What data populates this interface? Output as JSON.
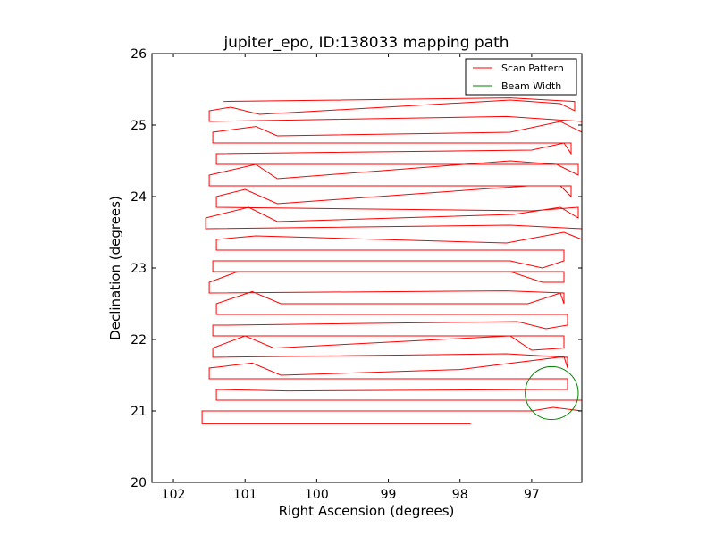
{
  "chart_data": {
    "type": "line",
    "title": "jupiter_epo, ID:138033 mapping path",
    "xlabel": "Right Ascension (degrees)",
    "ylabel": "Declination (degrees)",
    "xlim": [
      102.3,
      96.3
    ],
    "ylim": [
      20,
      26
    ],
    "xticks": [
      102,
      101,
      100,
      99,
      98,
      97
    ],
    "yticks": [
      20,
      21,
      22,
      23,
      24,
      25,
      26
    ],
    "xtick_labels": [
      "102",
      "101",
      "100",
      "99",
      "98",
      "97"
    ],
    "ytick_labels": [
      "20",
      "21",
      "22",
      "23",
      "24",
      "25",
      "26"
    ],
    "legend_position": "top-right",
    "grid": false,
    "series": [
      {
        "name": "Scan Pattern",
        "color": "#ff0000",
        "rows": [
          {
            "y": 20.82,
            "x_start": 97.85,
            "x_end": 101.6,
            "bumps": []
          },
          {
            "y": 21.0,
            "x_start": 101.6,
            "x_end": 96.3,
            "bumps": [
              [
                97.0,
                21.0
              ],
              [
                96.7,
                21.05
              ]
            ]
          },
          {
            "y": 21.15,
            "x_start": 96.3,
            "x_end": 101.4,
            "bumps": []
          },
          {
            "y": 21.3,
            "x_start": 101.4,
            "x_end": 96.5,
            "bumps": [
              [
                100.4,
                21.28
              ],
              [
                96.8,
                21.3
              ]
            ]
          },
          {
            "y": 21.45,
            "x_start": 96.5,
            "x_end": 101.5,
            "bumps": [
              [
                97.0,
                21.45
              ]
            ]
          },
          {
            "y": 21.6,
            "x_start": 101.5,
            "x_end": 96.5,
            "bumps": [
              [
                100.9,
                21.67
              ],
              [
                100.5,
                21.5
              ],
              [
                98.0,
                21.58
              ],
              [
                96.55,
                21.76
              ]
            ]
          },
          {
            "y": 21.75,
            "x_start": 96.5,
            "x_end": 101.45,
            "bumps": [
              [
                97.35,
                21.8
              ]
            ]
          },
          {
            "y": 21.88,
            "x_start": 101.45,
            "x_end": 96.55,
            "bumps": [
              [
                101.0,
                22.05
              ],
              [
                100.6,
                21.88
              ],
              [
                97.3,
                22.05
              ],
              [
                97.0,
                21.85
              ]
            ]
          },
          {
            "y": 22.05,
            "x_start": 96.55,
            "x_end": 101.45,
            "bumps": [
              [
                97.3,
                22.05
              ]
            ]
          },
          {
            "y": 22.2,
            "x_start": 101.45,
            "x_end": 96.5,
            "bumps": [
              [
                101.3,
                22.2
              ],
              [
                97.2,
                22.25
              ],
              [
                96.8,
                22.15
              ]
            ]
          },
          {
            "y": 22.35,
            "x_start": 96.5,
            "x_end": 101.4,
            "bumps": [
              [
                97.3,
                22.35
              ]
            ]
          },
          {
            "y": 22.5,
            "x_start": 101.4,
            "x_end": 96.55,
            "bumps": [
              [
                100.9,
                22.67
              ],
              [
                100.5,
                22.5
              ],
              [
                97.05,
                22.5
              ],
              [
                96.6,
                22.65
              ]
            ]
          },
          {
            "y": 22.65,
            "x_start": 96.55,
            "x_end": 101.5,
            "bumps": [
              [
                97.35,
                22.68
              ]
            ]
          },
          {
            "y": 22.8,
            "x_start": 101.5,
            "x_end": 96.55,
            "bumps": [
              [
                101.1,
                22.95
              ],
              [
                97.3,
                22.95
              ],
              [
                96.85,
                22.8
              ]
            ]
          },
          {
            "y": 22.95,
            "x_start": 96.55,
            "x_end": 101.45,
            "bumps": [
              [
                97.3,
                22.95
              ]
            ]
          },
          {
            "y": 23.1,
            "x_start": 101.45,
            "x_end": 96.55,
            "bumps": [
              [
                100.2,
                23.1
              ],
              [
                97.3,
                23.1
              ],
              [
                96.85,
                23.0
              ]
            ]
          },
          {
            "y": 23.25,
            "x_start": 96.55,
            "x_end": 101.4,
            "bumps": []
          },
          {
            "y": 23.4,
            "x_start": 101.4,
            "x_end": 96.3,
            "bumps": [
              [
                100.85,
                23.45
              ],
              [
                97.35,
                23.35
              ],
              [
                96.55,
                23.5
              ]
            ]
          },
          {
            "y": 23.55,
            "x_start": 96.3,
            "x_end": 101.55,
            "bumps": [
              [
                97.3,
                23.6
              ]
            ]
          },
          {
            "y": 23.7,
            "x_start": 101.55,
            "x_end": 96.35,
            "bumps": [
              [
                100.95,
                23.85
              ],
              [
                100.55,
                23.65
              ],
              [
                97.25,
                23.75
              ],
              [
                96.6,
                23.85
              ]
            ]
          },
          {
            "y": 23.85,
            "x_start": 96.35,
            "x_end": 101.4,
            "bumps": [
              [
                97.0,
                23.8
              ]
            ]
          },
          {
            "y": 24.0,
            "x_start": 101.4,
            "x_end": 96.45,
            "bumps": [
              [
                101.0,
                24.1
              ],
              [
                100.55,
                23.9
              ],
              [
                97.05,
                24.15
              ],
              [
                96.6,
                24.15
              ]
            ]
          },
          {
            "y": 24.15,
            "x_start": 96.45,
            "x_end": 101.5,
            "bumps": [
              [
                97.05,
                24.15
              ]
            ]
          },
          {
            "y": 24.3,
            "x_start": 101.5,
            "x_end": 96.35,
            "bumps": [
              [
                100.85,
                24.45
              ],
              [
                100.55,
                24.25
              ],
              [
                97.3,
                24.5
              ],
              [
                96.65,
                24.45
              ]
            ]
          },
          {
            "y": 24.45,
            "x_start": 96.35,
            "x_end": 101.4,
            "bumps": []
          },
          {
            "y": 24.6,
            "x_start": 101.4,
            "x_end": 96.45,
            "bumps": [
              [
                97.0,
                24.65
              ],
              [
                96.55,
                24.75
              ]
            ]
          },
          {
            "y": 24.75,
            "x_start": 96.45,
            "x_end": 101.45,
            "bumps": [
              [
                97.3,
                24.75
              ]
            ]
          },
          {
            "y": 24.9,
            "x_start": 101.45,
            "x_end": 96.3,
            "bumps": [
              [
                100.85,
                24.98
              ],
              [
                100.55,
                24.85
              ],
              [
                97.3,
                24.9
              ],
              [
                96.6,
                25.05
              ]
            ]
          },
          {
            "y": 25.05,
            "x_start": 96.3,
            "x_end": 101.5,
            "bumps": [
              [
                97.35,
                25.12
              ]
            ]
          },
          {
            "y": 25.2,
            "x_start": 101.5,
            "x_end": 96.4,
            "bumps": [
              [
                101.2,
                25.25
              ],
              [
                100.8,
                25.15
              ],
              [
                97.3,
                25.35
              ],
              [
                96.6,
                25.3
              ]
            ]
          },
          {
            "y": 25.33,
            "x_start": 96.4,
            "x_end": 101.3,
            "bumps": [
              [
                97.3,
                25.38
              ]
            ]
          }
        ]
      },
      {
        "name": "Beam Width",
        "color": "#008000",
        "circle": {
          "center_x": 96.72,
          "center_y": 21.25,
          "radius": 0.37
        }
      }
    ]
  }
}
